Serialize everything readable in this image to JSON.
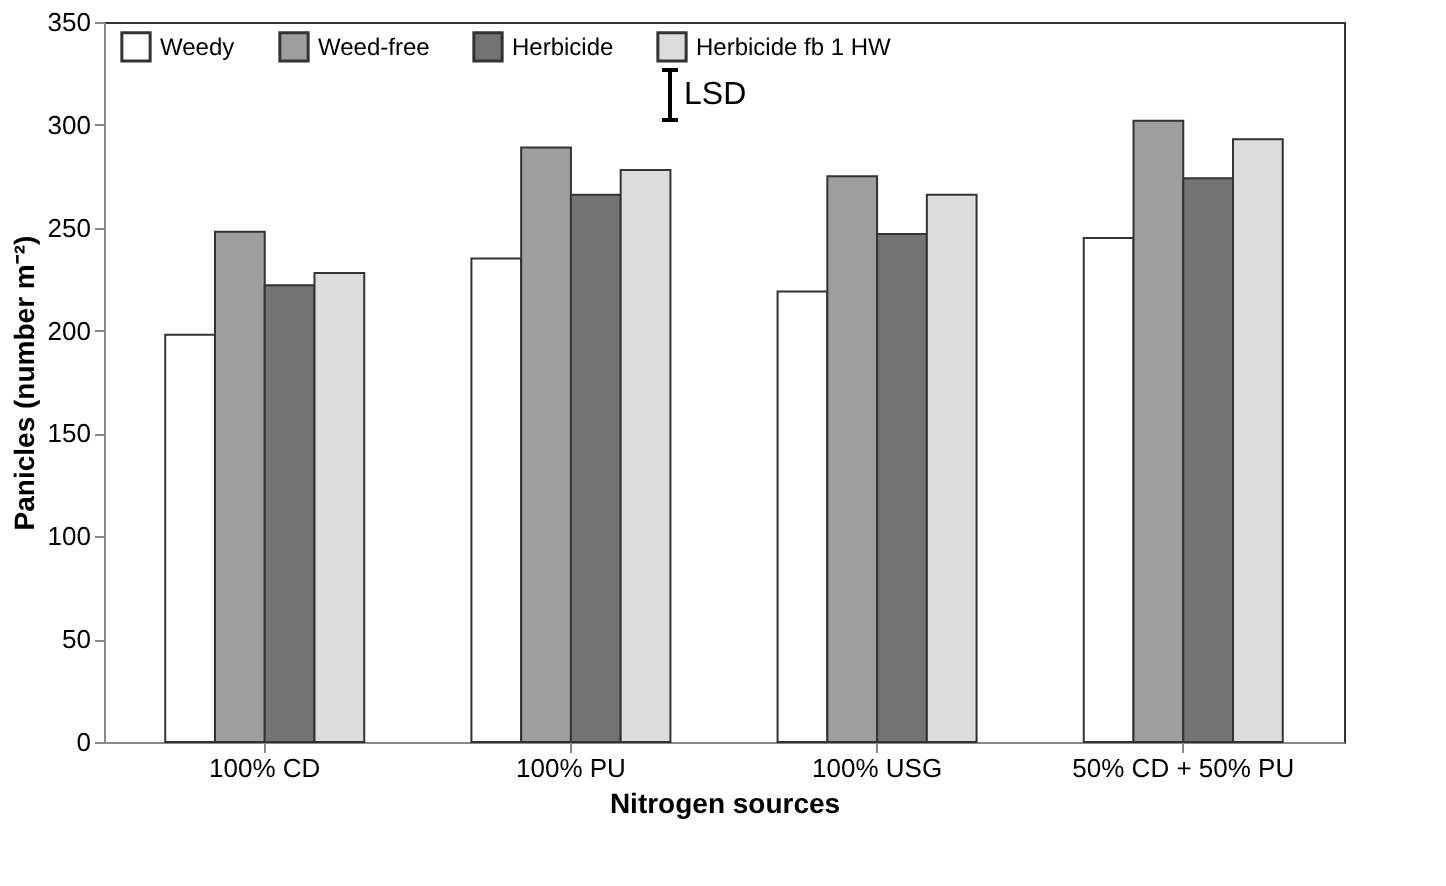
{
  "chart_data": {
    "type": "bar",
    "xlabel": "Nitrogen sources",
    "ylabel": "Panicles (number m⁻²)",
    "categories": [
      "100% CD",
      "100% PU",
      "100% USG",
      "50% CD + 50% PU"
    ],
    "series": [
      {
        "name": "Weedy",
        "color": "#ffffff",
        "values": [
          198,
          235,
          219,
          245
        ]
      },
      {
        "name": "Weed-free",
        "color": "#9e9e9e",
        "values": [
          248,
          289,
          275,
          302
        ]
      },
      {
        "name": "Herbicide",
        "color": "#737373",
        "values": [
          222,
          266,
          247,
          274
        ]
      },
      {
        "name": "Herbicide fb 1 HW",
        "color": "#dcdcdc",
        "values": [
          228,
          278,
          266,
          293
        ]
      }
    ],
    "ylim": [
      0,
      350
    ],
    "yticks": [
      0,
      50,
      100,
      150,
      200,
      250,
      300,
      350
    ],
    "grid": false,
    "legend": "top",
    "annotations": [
      "LSD"
    ]
  }
}
